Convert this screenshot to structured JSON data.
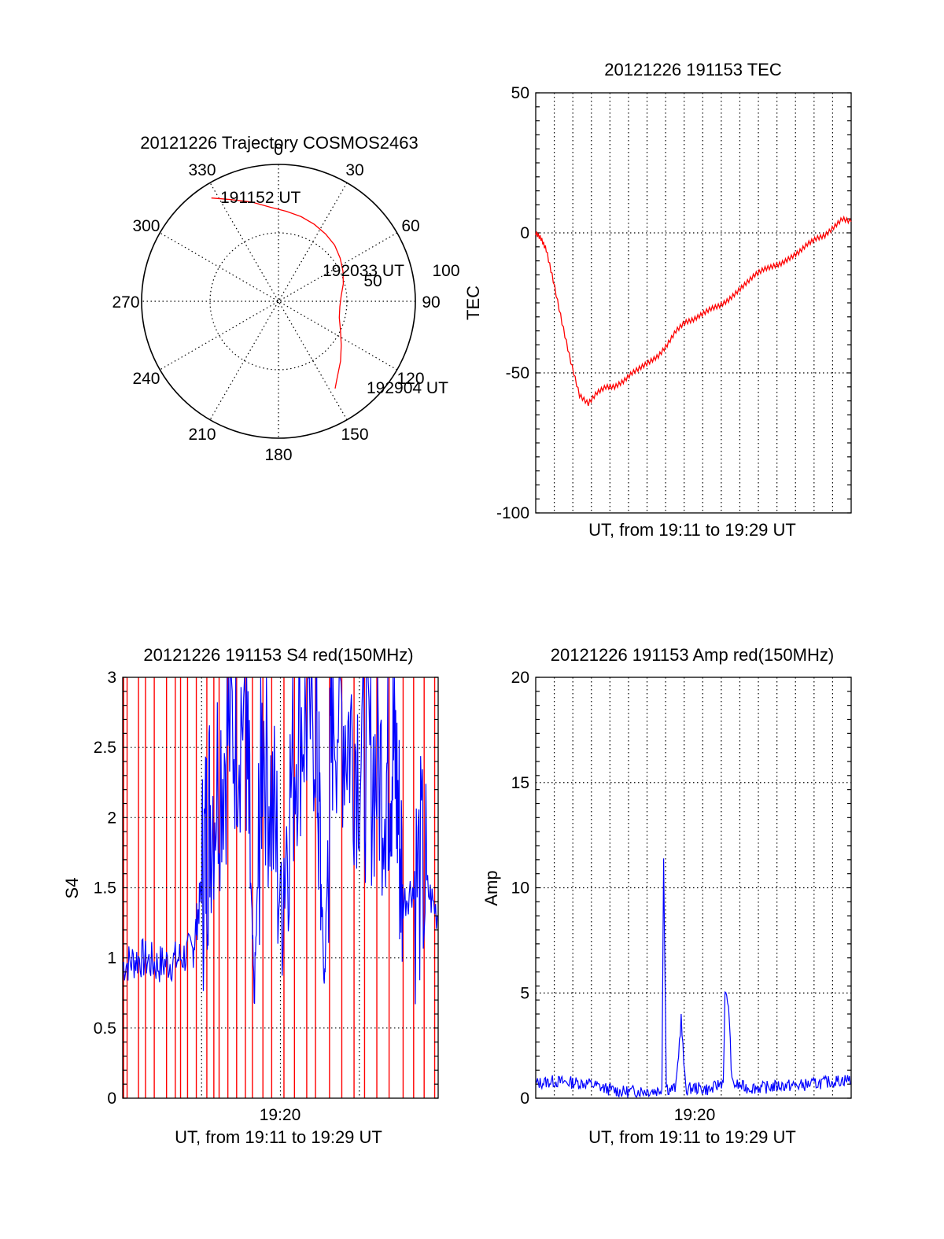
{
  "chart_data": [
    {
      "type": "polar",
      "title": "20121226 Trajectory COSMOS2463",
      "angle_labels": [
        "0",
        "30",
        "60",
        "90",
        "120",
        "150",
        "180",
        "210",
        "240",
        "270",
        "300",
        "330"
      ],
      "radius_labels": [
        "50",
        "100"
      ],
      "rlim": [
        0,
        100
      ],
      "grid": true,
      "series": [
        {
          "color": "#ff0000",
          "azimuth": [
            327,
            335,
            345,
            355,
            5,
            15,
            25,
            35,
            45,
            55,
            65,
            75,
            85,
            95,
            105,
            115,
            125,
            134,
            143,
            147
          ],
          "zenith": [
            90,
            82,
            75,
            69,
            66,
            64,
            62,
            60,
            58,
            55,
            52,
            49,
            46,
            45,
            46,
            50,
            56,
            63,
            71,
            76
          ]
        }
      ],
      "annotations": [
        {
          "text": "191152 UT",
          "azimuth": 327,
          "zenith": 90
        },
        {
          "text": "192033 UT",
          "azimuth": 70,
          "zenith": 55
        },
        {
          "text": "192904 UT",
          "azimuth": 147,
          "zenith": 76
        }
      ]
    },
    {
      "type": "line",
      "title": "20121226 191153 TEC",
      "xlabel": "UT, from 19:11 to 19:29 UT",
      "ylabel": "TEC",
      "xlim": [
        0,
        18
      ],
      "ylim": [
        -100,
        50
      ],
      "yticks": [
        "50",
        "0",
        "-50",
        "-100"
      ],
      "grid": true,
      "series": [
        {
          "color": "#ff0000",
          "x": [
            0,
            0.3,
            0.6,
            1.0,
            1.5,
            2.0,
            2.5,
            3.0,
            3.5,
            4.0,
            4.5,
            5.0,
            5.5,
            6.0,
            6.5,
            7.0,
            7.5,
            8.0,
            8.5,
            9.0,
            9.5,
            10.0,
            10.5,
            11.0,
            11.5,
            12.0,
            12.5,
            13.0,
            13.5,
            14.0,
            14.5,
            15.0,
            15.5,
            16.0,
            16.5,
            17.0,
            17.5,
            18.0
          ],
          "y": [
            0,
            -2,
            -6,
            -17,
            -32,
            -46,
            -58,
            -61,
            -57,
            -55,
            -55,
            -53,
            -50,
            -48,
            -46,
            -44,
            -40,
            -35,
            -32,
            -31,
            -29,
            -27,
            -26,
            -24,
            -21,
            -18,
            -15,
            -13,
            -12,
            -11,
            -9,
            -7,
            -4,
            -2,
            -1,
            2,
            5,
            4
          ]
        }
      ]
    },
    {
      "type": "line",
      "title": "20121226 191153 S4 red(150MHz)",
      "xlabel": "UT, from 19:11 to 19:29 UT",
      "ylabel": "S4",
      "xlim": [
        0,
        18
      ],
      "ylim": [
        0,
        3
      ],
      "xticks": [
        "19:20"
      ],
      "yticks": [
        "0",
        "0.5",
        "1",
        "1.5",
        "2",
        "2.5",
        "3"
      ],
      "grid": true,
      "series": [
        {
          "color": "#ff0000",
          "note": "",
          "spikes_x": [
            0.05,
            0.25,
            0.9,
            1.3,
            1.8,
            2.5,
            3.0,
            3.3,
            3.7,
            4.2,
            4.8,
            5.2,
            5.5,
            6.0,
            6.5,
            7.0,
            7.4,
            8.0,
            8.5,
            9.2,
            9.8,
            10.5,
            11.0,
            11.8,
            12.5,
            13.2,
            13.8,
            14.5,
            15.2,
            16.0,
            16.6,
            17.2,
            17.8
          ]
        },
        {
          "color": "#0000ff",
          "x": [
            0,
            1,
            2,
            3,
            4,
            4.5,
            5,
            6,
            7,
            7.5,
            8,
            9,
            10,
            11,
            11.5,
            12,
            13,
            14,
            15,
            15.5,
            16,
            17,
            18
          ],
          "y": [
            0.95,
            1.0,
            0.95,
            0.98,
            1.05,
            1.5,
            2.1,
            2.6,
            2.8,
            0.7,
            2.7,
            1.5,
            2.7,
            2.8,
            0.8,
            2.9,
            2.6,
            2.4,
            2.3,
            2.5,
            1.4,
            1.6,
            1.3
          ]
        }
      ]
    },
    {
      "type": "line",
      "title": "20121226 191153 Amp red(150MHz)",
      "xlabel": "UT, from 19:11 to 19:29 UT",
      "ylabel": "Amp",
      "xlim": [
        0,
        18
      ],
      "ylim": [
        0,
        20
      ],
      "xticks": [
        "19:20"
      ],
      "yticks": [
        "0",
        "5",
        "10",
        "15",
        "20"
      ],
      "grid": true,
      "series": [
        {
          "color": "#0000ff",
          "x": [
            0,
            1,
            2,
            3,
            4,
            5,
            6,
            7,
            7.2,
            7.3,
            7.45,
            7.6,
            8.0,
            8.3,
            8.5,
            8.6,
            9.0,
            10.0,
            10.7,
            10.8,
            11.0,
            11.2,
            12,
            13,
            14,
            15,
            16,
            17,
            18
          ],
          "y": [
            0.7,
            0.8,
            0.75,
            0.7,
            0.45,
            0.3,
            0.35,
            0.35,
            0.5,
            11.6,
            0.6,
            0.4,
            0.5,
            3.8,
            1.0,
            0.4,
            0.5,
            0.4,
            0.8,
            4.9,
            4.5,
            0.7,
            0.5,
            0.5,
            0.6,
            0.6,
            0.7,
            0.8,
            0.9
          ]
        }
      ]
    }
  ]
}
